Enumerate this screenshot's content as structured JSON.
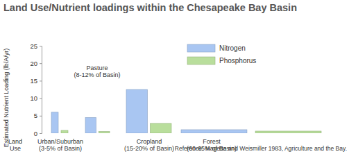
{
  "chart_data": {
    "type": "bar",
    "title": "Land Use/Nutrient loadings within the Chesapeake Bay Basin",
    "ylabel": "Estimated Nutrient Loading (lb/A/yr)",
    "xlabel": "Land\nUse",
    "categories": [
      "Urban/Suburban\n(3-5% of Basin)",
      "Pasture\n(8-12% of Basin)",
      "Cropland\n(15-20% of Basin)",
      "Forest\n(60-65% of Basin)"
    ],
    "series": [
      {
        "name": "Nitrogen",
        "color": "#a9c6f2",
        "values": [
          6,
          4.5,
          12.5,
          1
        ]
      },
      {
        "name": "Phosphorus",
        "color": "#b9de9c",
        "values": [
          0.8,
          0.5,
          2.8,
          0.6
        ]
      }
    ],
    "ylim": [
      0,
      25
    ],
    "yticks": [
      0,
      5,
      10,
      15,
      20,
      25
    ],
    "grid": false,
    "legend": "top-right",
    "annotations": [
      "Reference: Magette and Weismiller 1983, Agriculture and the Bay."
    ]
  }
}
